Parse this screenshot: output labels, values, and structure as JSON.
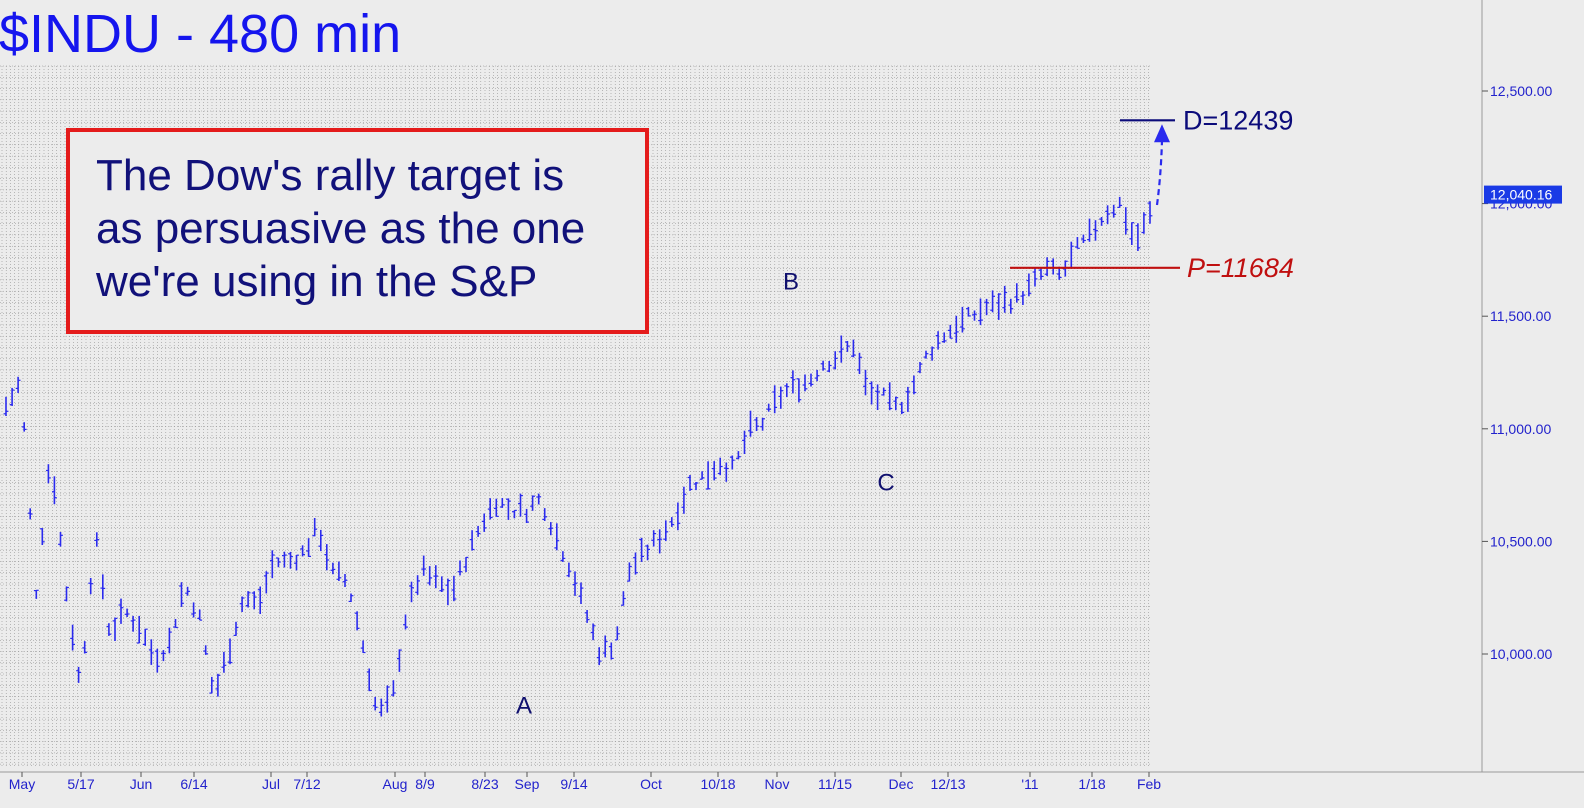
{
  "chart_data": {
    "type": "bar",
    "title": "$INDU - 480 min",
    "xlabel": "",
    "ylabel": "",
    "ylim": [
      9550,
      12820
    ],
    "grid": true,
    "y_ticks": [
      {
        "value": 10000,
        "label": "10,000.00"
      },
      {
        "value": 10500,
        "label": "10,500.00"
      },
      {
        "value": 11000,
        "label": "11,000.00"
      },
      {
        "value": 11500,
        "label": "11,500.00"
      },
      {
        "value": 12000,
        "label": "12,000.00"
      },
      {
        "value": 12500,
        "label": "12,500.00"
      }
    ],
    "x_ticks": [
      "May",
      "5/17",
      "Jun",
      "6/14",
      "Jul",
      "7/12",
      "Aug",
      "8/9",
      "8/23",
      "Sep",
      "9/14",
      "Oct",
      "10/18",
      "Nov",
      "11/15",
      "Dec",
      "12/13",
      "'11",
      "1/18",
      "Feb"
    ],
    "last_price": {
      "value": 12040.16,
      "label": "12,040.16"
    },
    "anchor_prices": [
      11100,
      11210,
      10260,
      10900,
      10310,
      9850,
      10530,
      10090,
      10190,
      10120,
      9980,
      10050,
      10310,
      10170,
      9810,
      10020,
      10250,
      10220,
      10410,
      10410,
      10450,
      10560,
      10360,
      10320,
      10050,
      9730,
      9800,
      10200,
      10370,
      10320,
      10270,
      10430,
      10580,
      10680,
      10640,
      10640,
      10690,
      10530,
      10380,
      10190,
      10000,
      10050,
      10380,
      10450,
      10520,
      10610,
      10750,
      10790,
      10850,
      10820,
      10990,
      11030,
      11140,
      11190,
      11210,
      11290,
      11320,
      11380,
      11160,
      11140,
      11090,
      11180,
      11330,
      11410,
      11460,
      11500,
      11540,
      11560,
      11580,
      11630,
      11710,
      11680,
      11790,
      11860,
      11960,
      12000,
      11830,
      11950
    ],
    "annotations": [
      {
        "label": "A",
        "value": 9870
      },
      {
        "label": "B",
        "value": 11530
      },
      {
        "label": "C",
        "value": 10860
      }
    ],
    "levels": [
      {
        "label": "D=12439",
        "value": 12370,
        "color": "#0b0b7a"
      },
      {
        "label": "P=11684",
        "value": 11715,
        "color": "#c01010"
      }
    ],
    "box_text": [
      "The Dow's rally target is",
      "as persuasive as the one",
      "we're using in the S&P"
    ],
    "colors": {
      "bars": "#2a2aee",
      "title": "#1515ee",
      "letters": "#10106e",
      "box_border": "#e41b1b",
      "box_text": "#11117a",
      "last_badge": "#1a3ae6",
      "axis_text": "#2222cc",
      "grid": "#8a8a8a"
    }
  }
}
